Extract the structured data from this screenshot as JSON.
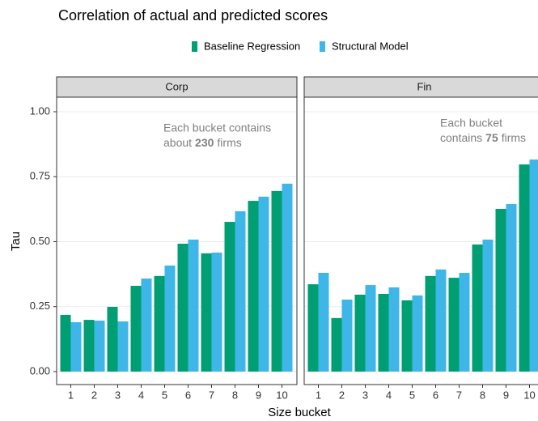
{
  "chart_data": {
    "type": "bar",
    "title": "Correlation of actual and predicted scores",
    "x_label": "Size bucket",
    "y_label": "Tau",
    "categories": [
      "1",
      "2",
      "3",
      "4",
      "5",
      "6",
      "7",
      "8",
      "9",
      "10"
    ],
    "ylim": [
      -0.05,
      1.056
    ],
    "yticks": [
      {
        "value": 0,
        "label": "0.00"
      },
      {
        "value": 0.25,
        "label": "0.25"
      },
      {
        "value": 0.5,
        "label": "0.50"
      },
      {
        "value": 0.75,
        "label": "0.75"
      },
      {
        "value": 1,
        "label": "1.00"
      }
    ],
    "grid": true,
    "legend": "top",
    "series": [
      {
        "name": "Baseline Regression",
        "color": "#009e73"
      },
      {
        "name": "Structural Model",
        "color": "#3fb6e8"
      }
    ],
    "panels": [
      {
        "label": "Corp",
        "annotation": {
          "line1": "Each bucket contains",
          "before": "about",
          "bold": "230",
          "after": "firms"
        },
        "series": [
          {
            "values": [
              0.218,
              0.199,
              0.249,
              0.33,
              0.368,
              0.492,
              0.455,
              0.576,
              0.657,
              0.695
            ]
          },
          {
            "values": [
              0.19,
              0.196,
              0.193,
              0.358,
              0.408,
              0.508,
              0.458,
              0.617,
              0.673,
              0.723
            ]
          }
        ]
      },
      {
        "label": "Fin",
        "annotation": {
          "line1": "Each bucket",
          "before": "contains",
          "bold": "75",
          "after": "firms"
        },
        "series": [
          {
            "values": [
              0.336,
              0.206,
              0.296,
              0.299,
              0.274,
              0.368,
              0.361,
              0.489,
              0.626,
              0.797
            ]
          },
          {
            "values": [
              0.38,
              0.277,
              0.333,
              0.324,
              0.293,
              0.393,
              0.38,
              0.508,
              0.645,
              0.816
            ]
          }
        ]
      }
    ]
  }
}
